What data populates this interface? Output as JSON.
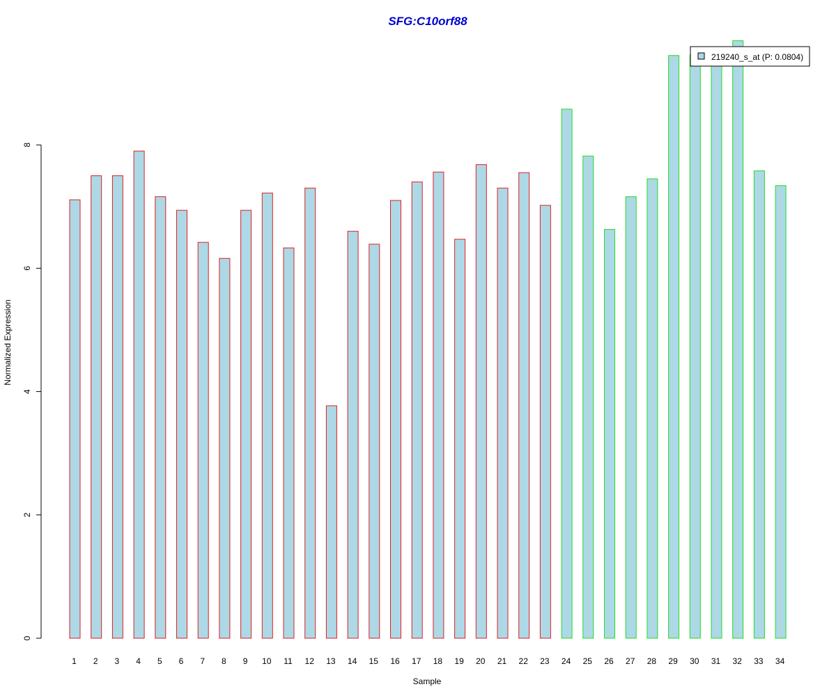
{
  "chart_data": {
    "type": "bar",
    "title": "SFG:C10orf88",
    "xlabel": "Sample",
    "ylabel": "Normalized Expression",
    "ylim": [
      0,
      9.8
    ],
    "yticks": [
      "0",
      "2",
      "4",
      "6",
      "8"
    ],
    "categories": [
      "1",
      "2",
      "3",
      "4",
      "5",
      "6",
      "7",
      "8",
      "9",
      "10",
      "11",
      "12",
      "13",
      "14",
      "15",
      "16",
      "17",
      "18",
      "19",
      "20",
      "21",
      "22",
      "23",
      "24",
      "25",
      "26",
      "27",
      "28",
      "29",
      "30",
      "31",
      "32",
      "33",
      "34"
    ],
    "series": [
      {
        "name": "219240_s_at (P: 0.0804)",
        "fill_color": "#add8e6",
        "values": [
          7.11,
          7.5,
          7.5,
          7.9,
          7.16,
          6.94,
          6.42,
          6.16,
          6.94,
          7.22,
          6.33,
          7.3,
          3.77,
          6.6,
          6.39,
          7.1,
          7.4,
          7.56,
          6.47,
          7.68,
          7.3,
          7.55,
          7.02,
          8.58,
          7.82,
          6.63,
          7.16,
          7.45,
          9.45,
          9.46,
          9.46,
          9.69,
          7.58,
          7.34
        ]
      }
    ],
    "bar_border_colors": [
      "#e0201e",
      "#e0201e",
      "#e0201e",
      "#e0201e",
      "#e0201e",
      "#e0201e",
      "#e0201e",
      "#e0201e",
      "#e0201e",
      "#e0201e",
      "#e0201e",
      "#e0201e",
      "#e0201e",
      "#e0201e",
      "#e0201e",
      "#e0201e",
      "#e0201e",
      "#e0201e",
      "#e0201e",
      "#e0201e",
      "#e0201e",
      "#e0201e",
      "#e0201e",
      "#22dd22",
      "#22dd22",
      "#22dd22",
      "#22dd22",
      "#22dd22",
      "#22dd22",
      "#22dd22",
      "#22dd22",
      "#22dd22",
      "#22dd22",
      "#22dd22"
    ],
    "title_color": "#0000cc",
    "legend": {
      "label": "219240_s_at (P: 0.0804)",
      "placement": "top-right"
    },
    "grid": false
  }
}
